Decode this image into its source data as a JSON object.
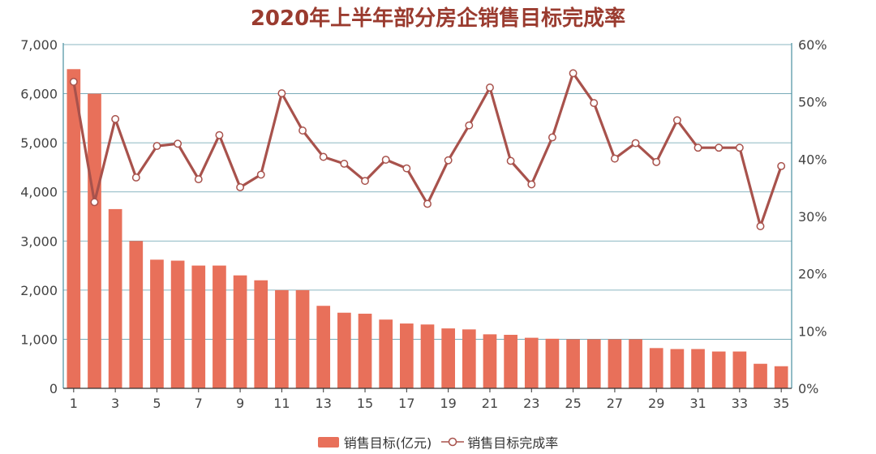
{
  "chart_data": {
    "type": "bar",
    "title": "2020年上半年部分房企销售目标完成率",
    "categories": [
      "1",
      "2",
      "3",
      "4",
      "5",
      "6",
      "7",
      "8",
      "9",
      "10",
      "11",
      "12",
      "13",
      "14",
      "15",
      "16",
      "17",
      "18",
      "19",
      "20",
      "21",
      "22",
      "23",
      "24",
      "25",
      "26",
      "27",
      "28",
      "29",
      "30",
      "31",
      "32",
      "33",
      "34",
      "35"
    ],
    "series": [
      {
        "name": "销售目标(亿元)",
        "kind": "bar",
        "axis": "left",
        "values": [
          6500,
          6000,
          3650,
          3000,
          2620,
          2600,
          2500,
          2500,
          2300,
          2200,
          2000,
          2000,
          1680,
          1540,
          1520,
          1400,
          1320,
          1300,
          1220,
          1200,
          1100,
          1090,
          1030,
          1010,
          1000,
          1000,
          1000,
          1000,
          820,
          800,
          800,
          750,
          750,
          500,
          450
        ]
      },
      {
        "name": "销售目标完成率",
        "kind": "line",
        "axis": "right",
        "values": [
          53.5,
          32.5,
          47.0,
          36.8,
          42.3,
          42.7,
          36.5,
          44.2,
          35.1,
          37.3,
          51.5,
          45.0,
          40.4,
          39.2,
          36.2,
          39.9,
          38.4,
          32.2,
          39.8,
          45.9,
          52.5,
          39.7,
          35.6,
          43.8,
          55.0,
          49.8,
          40.1,
          42.8,
          39.5,
          46.8,
          42.0,
          42.0,
          42.0,
          28.3,
          38.8
        ]
      }
    ],
    "y_left": {
      "min": 0,
      "max": 7000,
      "ticks": [
        "0",
        "1,000",
        "2,000",
        "3,000",
        "4,000",
        "5,000",
        "6,000",
        "7,000"
      ]
    },
    "y_right": {
      "min": 0,
      "max": 60,
      "ticks": [
        "0%",
        "10%",
        "20%",
        "30%",
        "40%",
        "50%",
        "60%"
      ]
    },
    "x_tick_labels": [
      "1",
      "3",
      "5",
      "7",
      "9",
      "11",
      "13",
      "15",
      "17",
      "19",
      "21",
      "23",
      "25",
      "27",
      "29",
      "31",
      "33",
      "35"
    ],
    "grid": true,
    "legend_position": "bottom",
    "colors": {
      "bar": "#e8705a",
      "line": "#a8524c",
      "axis": "#4a8fa0",
      "grid": "#4a8fa0",
      "title": "#9a3b2f"
    }
  }
}
